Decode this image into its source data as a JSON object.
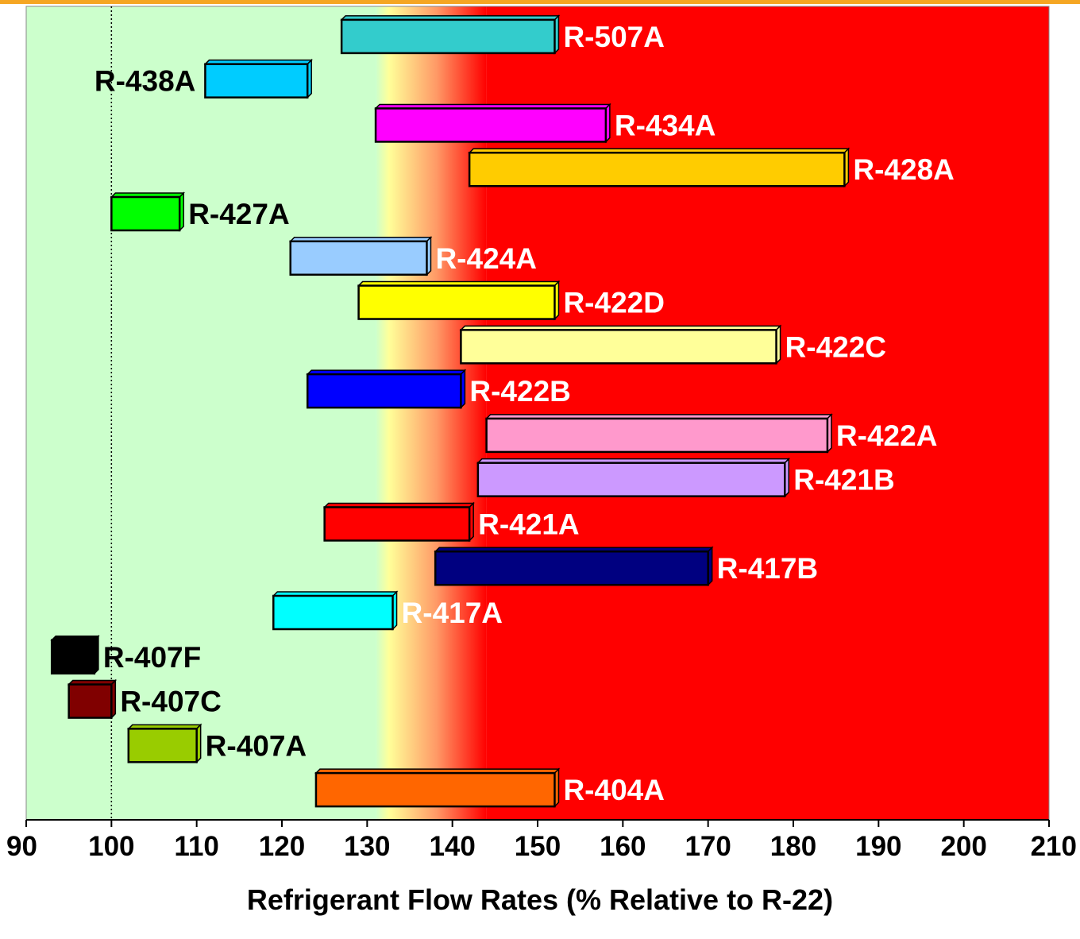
{
  "chart_data": {
    "type": "bar",
    "orientation": "horizontal-range",
    "xlabel": "Refrigerant Flow Rates (% Relative to R-22)",
    "xlim": [
      90,
      210
    ],
    "xticks": [
      "90",
      "100",
      "110",
      "120",
      "130",
      "140",
      "150",
      "160",
      "170",
      "180",
      "190",
      "200",
      "210"
    ],
    "reference_line": 100,
    "background_bands": [
      {
        "from": 90,
        "to": 131,
        "color": "#ccffcc"
      },
      {
        "from": 131,
        "to": 144,
        "color": "gradient-yellow-orange"
      },
      {
        "from": 144,
        "to": 210,
        "color": "#ff0000"
      }
    ],
    "series": [
      {
        "name": "R-507A",
        "start": 127,
        "end": 152,
        "color": "#33cccc",
        "label_color": "#ffffff"
      },
      {
        "name": "R-438A",
        "start": 111,
        "end": 123,
        "color": "#00ccff",
        "label_color": "#000000"
      },
      {
        "name": "R-434A",
        "start": 131,
        "end": 158,
        "color": "#ff00ff",
        "label_color": "#ffffff"
      },
      {
        "name": "R-428A",
        "start": 142,
        "end": 186,
        "color": "#ffcc00",
        "label_color": "#ffffff"
      },
      {
        "name": "R-427A",
        "start": 100,
        "end": 108,
        "color": "#00ff00",
        "label_color": "#000000"
      },
      {
        "name": "R-424A",
        "start": 121,
        "end": 137,
        "color": "#99ccff",
        "label_color": "#ffffff"
      },
      {
        "name": "R-422D",
        "start": 129,
        "end": 152,
        "color": "#ffff00",
        "label_color": "#ffffff"
      },
      {
        "name": "R-422C",
        "start": 141,
        "end": 178,
        "color": "#ffff99",
        "label_color": "#ffffff"
      },
      {
        "name": "R-422B",
        "start": 123,
        "end": 141,
        "color": "#0000ff",
        "label_color": "#ffffff"
      },
      {
        "name": "R-422A",
        "start": 144,
        "end": 184,
        "color": "#ff99cc",
        "label_color": "#ffffff"
      },
      {
        "name": "R-421B",
        "start": 143,
        "end": 179,
        "color": "#cc99ff",
        "label_color": "#ffffff"
      },
      {
        "name": "R-421A",
        "start": 125,
        "end": 142,
        "color": "#ff0000",
        "label_color": "#ffffff"
      },
      {
        "name": "R-417B",
        "start": 138,
        "end": 170,
        "color": "#000080",
        "label_color": "#ffffff"
      },
      {
        "name": "R-417A",
        "start": 119,
        "end": 133,
        "color": "#00ffff",
        "label_color": "#ffffff"
      },
      {
        "name": "R-407F",
        "start": 93,
        "end": 98,
        "color": "#000000",
        "label_color": "#000000"
      },
      {
        "name": "R-407C",
        "start": 95,
        "end": 100,
        "color": "#800000",
        "label_color": "#000000"
      },
      {
        "name": "R-407A",
        "start": 102,
        "end": 110,
        "color": "#99cc00",
        "label_color": "#000000"
      },
      {
        "name": "R-404A",
        "start": 124,
        "end": 152,
        "color": "#ff6600",
        "label_color": "#ffffff"
      }
    ]
  }
}
